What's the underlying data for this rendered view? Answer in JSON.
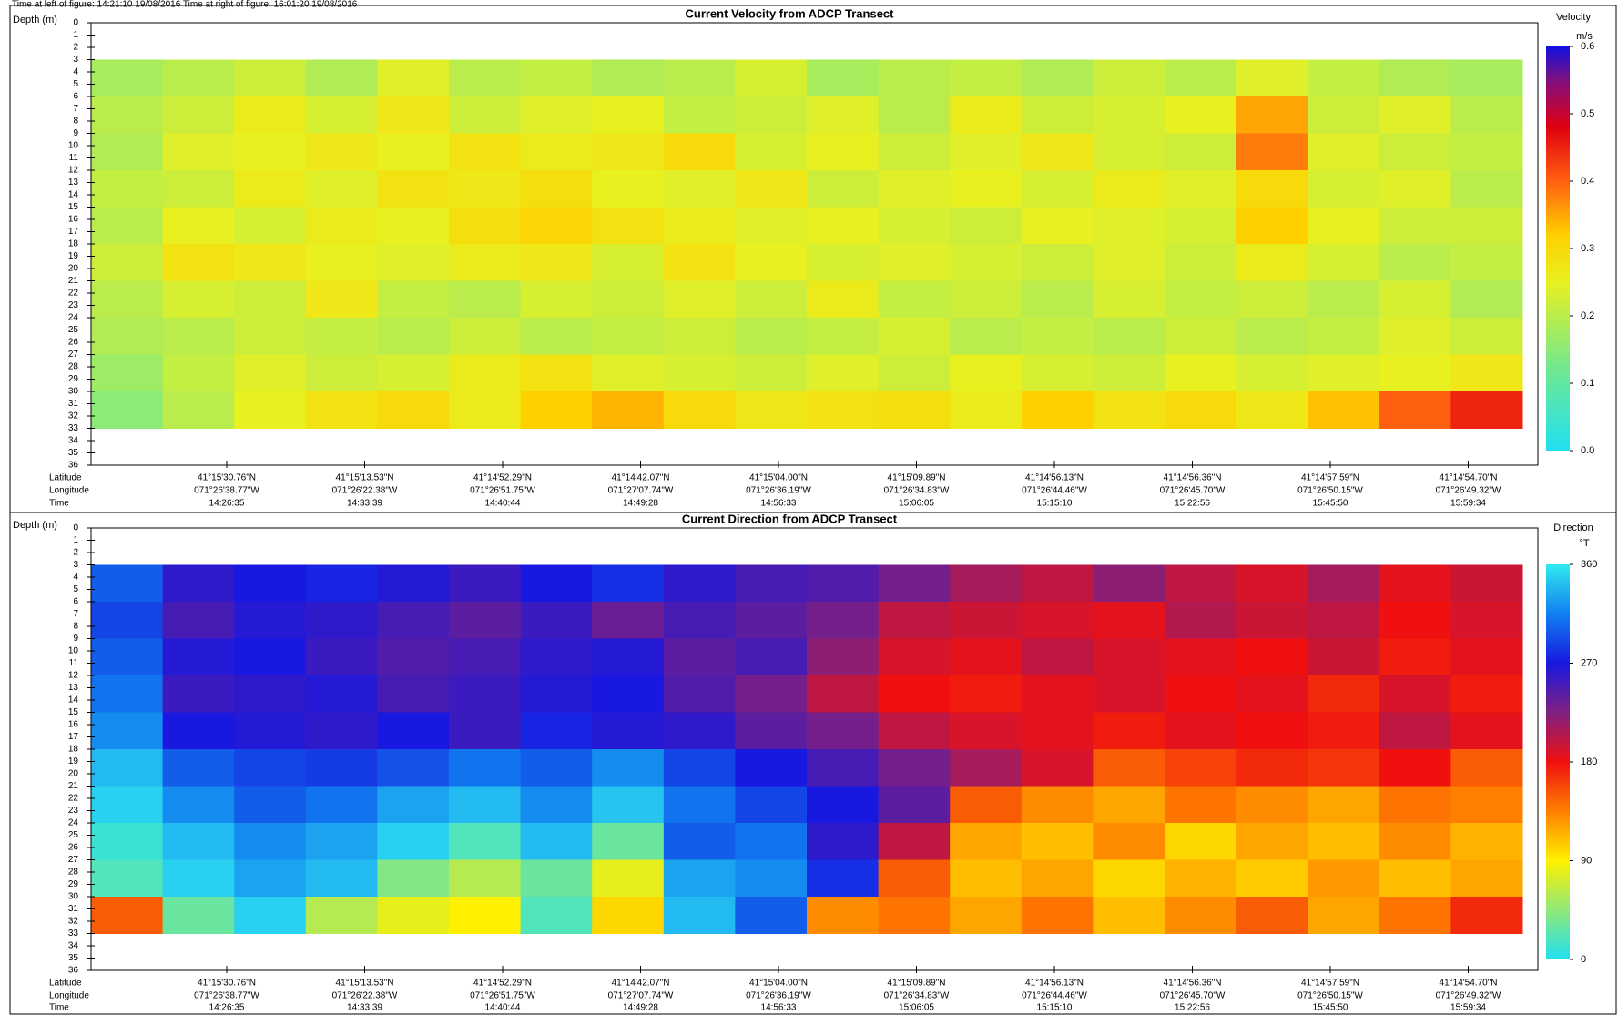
{
  "header": {
    "left": "Time at left of figure: 14:21:10 19/08/2016   Time at right of figure: 16:01:20 19/08/2016"
  },
  "chart_data": [
    {
      "type": "heatmap",
      "title": "Current Velocity from ADCP Transect",
      "y_label": "Depth (m)",
      "colorbar_title": "Velocity",
      "colorbar_unit": "m/s",
      "ylim": [
        0,
        36
      ],
      "yticks": [
        0,
        1,
        2,
        3,
        4,
        5,
        6,
        7,
        8,
        9,
        10,
        11,
        12,
        13,
        14,
        15,
        16,
        17,
        18,
        19,
        20,
        21,
        22,
        23,
        24,
        25,
        26,
        27,
        28,
        29,
        30,
        31,
        32,
        33,
        34,
        35,
        36
      ],
      "row_edges": [
        3,
        6,
        9,
        12,
        15,
        18,
        21,
        24,
        27,
        30,
        33
      ],
      "values": [
        [
          0.18,
          0.2,
          0.22,
          0.19,
          0.24,
          0.2,
          0.21,
          0.19,
          0.2,
          0.23,
          0.18,
          0.2,
          0.21,
          0.19,
          0.22,
          0.2,
          0.24,
          0.21,
          0.19,
          0.18
        ],
        [
          0.2,
          0.22,
          0.26,
          0.23,
          0.27,
          0.22,
          0.24,
          0.25,
          0.21,
          0.22,
          0.24,
          0.2,
          0.26,
          0.22,
          0.23,
          0.25,
          0.35,
          0.22,
          0.24,
          0.2
        ],
        [
          0.19,
          0.24,
          0.25,
          0.27,
          0.25,
          0.28,
          0.26,
          0.27,
          0.3,
          0.23,
          0.25,
          0.22,
          0.24,
          0.27,
          0.23,
          0.22,
          0.38,
          0.24,
          0.22,
          0.21
        ],
        [
          0.21,
          0.22,
          0.26,
          0.24,
          0.28,
          0.27,
          0.29,
          0.25,
          0.24,
          0.27,
          0.22,
          0.24,
          0.25,
          0.23,
          0.26,
          0.24,
          0.3,
          0.23,
          0.24,
          0.2
        ],
        [
          0.2,
          0.25,
          0.23,
          0.26,
          0.25,
          0.29,
          0.31,
          0.28,
          0.26,
          0.24,
          0.25,
          0.23,
          0.22,
          0.25,
          0.24,
          0.23,
          0.32,
          0.25,
          0.22,
          0.22
        ],
        [
          0.22,
          0.28,
          0.27,
          0.25,
          0.24,
          0.26,
          0.27,
          0.23,
          0.28,
          0.25,
          0.23,
          0.24,
          0.23,
          0.22,
          0.24,
          0.22,
          0.26,
          0.23,
          0.2,
          0.21
        ],
        [
          0.2,
          0.23,
          0.22,
          0.27,
          0.21,
          0.2,
          0.23,
          0.22,
          0.24,
          0.22,
          0.26,
          0.21,
          0.22,
          0.2,
          0.23,
          0.21,
          0.22,
          0.2,
          0.23,
          0.19
        ],
        [
          0.19,
          0.2,
          0.22,
          0.21,
          0.2,
          0.22,
          0.2,
          0.21,
          0.22,
          0.2,
          0.21,
          0.23,
          0.2,
          0.21,
          0.2,
          0.22,
          0.2,
          0.21,
          0.24,
          0.22
        ],
        [
          0.17,
          0.21,
          0.24,
          0.22,
          0.23,
          0.26,
          0.28,
          0.24,
          0.23,
          0.22,
          0.24,
          0.22,
          0.25,
          0.23,
          0.22,
          0.25,
          0.23,
          0.24,
          0.25,
          0.27
        ],
        [
          0.15,
          0.2,
          0.25,
          0.28,
          0.3,
          0.26,
          0.32,
          0.34,
          0.3,
          0.27,
          0.28,
          0.29,
          0.26,
          0.32,
          0.28,
          0.3,
          0.27,
          0.33,
          0.4,
          0.45
        ]
      ],
      "clim": [
        0,
        0.6
      ],
      "cticks": [
        {
          "value": 0,
          "label": "0.0"
        },
        0.1,
        0.2,
        0.3,
        0.4,
        0.5,
        0.6
      ],
      "colorscale": [
        {
          "value": 0,
          "color": "#20e0f0"
        },
        {
          "value": 0.12,
          "color": "#70e890"
        },
        {
          "value": 0.25,
          "color": "#e8f020"
        },
        {
          "value": 0.32,
          "color": "#ffd000"
        },
        {
          "value": 0.4,
          "color": "#ff6010"
        },
        {
          "value": 0.48,
          "color": "#e00010"
        },
        {
          "value": 0.55,
          "color": "#801080"
        },
        {
          "value": 0.6,
          "color": "#1010e0"
        }
      ],
      "x_row_labels": [
        "Latitude",
        "Longitude",
        "Time"
      ],
      "latitudes": [
        "41°15'30.76\"N",
        "41°15'13.53\"N",
        "41°14'52.29\"N",
        "41°14'42.07\"N",
        "41°15'04.00\"N",
        "41°15'09.89\"N",
        "41°14'56.13\"N",
        "41°14'56.36\"N",
        "41°14'57.59\"N",
        "41°14'54.70\"N"
      ],
      "longitudes": [
        "071°26'38.77\"W",
        "071°26'22.38\"W",
        "071°26'51.75\"W",
        "071°27'07.74\"W",
        "071°26'36.19\"W",
        "071°26'34.83\"W",
        "071°26'44.46\"W",
        "071°26'45.70\"W",
        "071°26'50.15\"W",
        "071°26'49.32\"W"
      ],
      "times": [
        "14:26:35",
        "14:33:39",
        "14:40:44",
        "14:49:28",
        "14:56:33",
        "15:06:05",
        "15:15:10",
        "15:22:56",
        "15:45:50",
        "15:59:34"
      ]
    },
    {
      "type": "heatmap",
      "title": "Current Direction from ADCP Transect",
      "y_label": "Depth (m)",
      "colorbar_title": "Direction",
      "colorbar_unit": "°T",
      "ylim": [
        0,
        36
      ],
      "yticks": [
        0,
        1,
        2,
        3,
        4,
        5,
        6,
        7,
        8,
        9,
        10,
        11,
        12,
        13,
        14,
        15,
        16,
        17,
        18,
        19,
        20,
        21,
        22,
        23,
        24,
        25,
        26,
        27,
        28,
        29,
        30,
        31,
        32,
        33,
        34,
        35,
        36
      ],
      "row_edges": [
        3,
        6,
        9,
        12,
        15,
        18,
        21,
        24,
        27,
        30,
        33
      ],
      "values": [
        [
          300,
          260,
          270,
          275,
          265,
          255,
          270,
          280,
          260,
          250,
          245,
          230,
          210,
          200,
          220,
          200,
          190,
          210,
          185,
          195
        ],
        [
          290,
          250,
          265,
          260,
          250,
          240,
          255,
          235,
          250,
          240,
          230,
          200,
          195,
          190,
          185,
          205,
          195,
          200,
          180,
          190
        ],
        [
          300,
          265,
          270,
          255,
          245,
          250,
          260,
          265,
          240,
          250,
          220,
          190,
          185,
          200,
          190,
          185,
          180,
          195,
          175,
          185
        ],
        [
          310,
          255,
          260,
          265,
          250,
          255,
          265,
          270,
          245,
          230,
          200,
          180,
          175,
          185,
          190,
          180,
          185,
          170,
          190,
          175
        ],
        [
          320,
          270,
          265,
          260,
          270,
          255,
          275,
          265,
          260,
          240,
          230,
          200,
          190,
          185,
          175,
          185,
          180,
          175,
          200,
          185
        ],
        [
          340,
          300,
          290,
          285,
          295,
          310,
          300,
          320,
          290,
          270,
          250,
          230,
          210,
          190,
          150,
          160,
          170,
          165,
          180,
          150
        ],
        [
          350,
          320,
          300,
          310,
          330,
          340,
          320,
          345,
          310,
          290,
          270,
          240,
          150,
          130,
          120,
          140,
          130,
          120,
          140,
          135
        ],
        [
          10,
          340,
          320,
          330,
          350,
          20,
          340,
          30,
          300,
          310,
          260,
          200,
          120,
          110,
          130,
          100,
          120,
          110,
          130,
          115
        ],
        [
          20,
          350,
          330,
          340,
          40,
          60,
          30,
          80,
          330,
          320,
          280,
          150,
          110,
          120,
          100,
          115,
          105,
          125,
          110,
          120
        ],
        [
          150,
          30,
          350,
          60,
          80,
          90,
          20,
          100,
          340,
          300,
          130,
          140,
          120,
          140,
          110,
          130,
          150,
          120,
          140,
          170
        ]
      ],
      "clim": [
        0,
        360
      ],
      "cticks": [
        0,
        90,
        180,
        270,
        360
      ],
      "colorscale": [
        {
          "value": 0,
          "color": "#20e0f0"
        },
        {
          "value": 90,
          "color": "#fff000"
        },
        {
          "value": 135,
          "color": "#ff8000"
        },
        {
          "value": 180,
          "color": "#f01010"
        },
        {
          "value": 225,
          "color": "#802080"
        },
        {
          "value": 270,
          "color": "#1818e0"
        },
        {
          "value": 315,
          "color": "#1080f0"
        },
        {
          "value": 360,
          "color": "#30e8f0"
        }
      ],
      "x_row_labels": [
        "Latitude",
        "Longitude",
        "Time"
      ],
      "latitudes": [
        "41°15'30.76\"N",
        "41°15'13.53\"N",
        "41°14'52.29\"N",
        "41°14'42.07\"N",
        "41°15'04.00\"N",
        "41°15'09.89\"N",
        "41°14'56.13\"N",
        "41°14'56.36\"N",
        "41°14'57.59\"N",
        "41°14'54.70\"N"
      ],
      "longitudes": [
        "071°26'38.77\"W",
        "071°26'22.38\"W",
        "071°26'51.75\"W",
        "071°27'07.74\"W",
        "071°26'36.19\"W",
        "071°26'34.83\"W",
        "071°26'44.46\"W",
        "071°26'45.70\"W",
        "071°26'50.15\"W",
        "071°26'49.32\"W"
      ],
      "times": [
        "14:26:35",
        "14:33:39",
        "14:40:44",
        "14:49:28",
        "14:56:33",
        "15:06:05",
        "15:15:10",
        "15:22:56",
        "15:45:50",
        "15:59:34"
      ]
    }
  ]
}
